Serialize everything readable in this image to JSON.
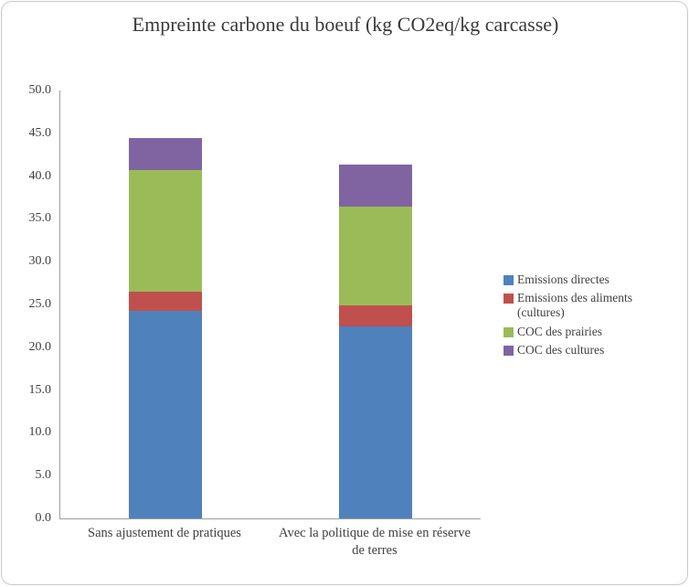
{
  "chart_data": {
    "type": "bar",
    "stacked": true,
    "title": "Empreinte carbone du boeuf (kg CO2eq/kg carcasse)",
    "categories": [
      "Sans ajustement de pratiques",
      "Avec la politique de mise en réserve de terres"
    ],
    "series": [
      {
        "name": "Emissions directes",
        "color": "#4f81bd",
        "values": [
          24.3,
          22.4
        ]
      },
      {
        "name": "Emissions des aliments (cultures)",
        "color": "#c0504d",
        "values": [
          2.2,
          2.5
        ]
      },
      {
        "name": "COC des prairies",
        "color": "#9bbb59",
        "values": [
          14.2,
          11.5
        ]
      },
      {
        "name": "COC des cultures",
        "color": "#8064a2",
        "values": [
          3.8,
          5.0
        ]
      }
    ],
    "ylim": [
      0,
      50
    ],
    "y_tick_step": 5,
    "y_ticks": [
      "0.0",
      "5.0",
      "10.0",
      "15.0",
      "20.0",
      "25.0",
      "30.0",
      "35.0",
      "40.0",
      "45.0",
      "50.0"
    ],
    "grid": false,
    "legend_position": "right"
  }
}
